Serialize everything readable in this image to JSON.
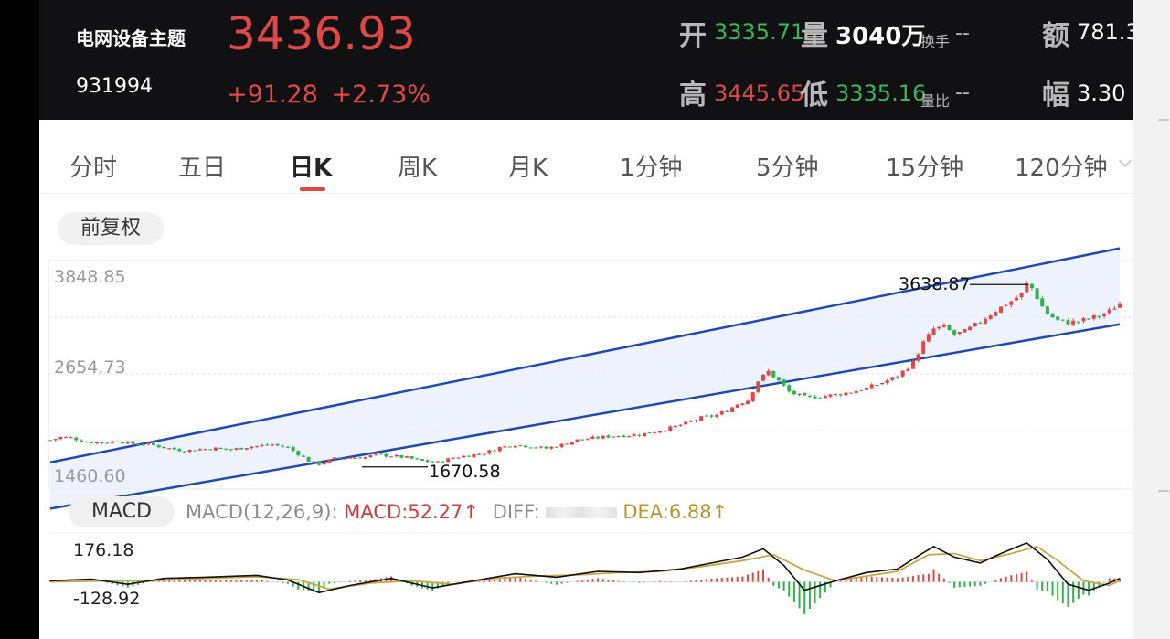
{
  "header": {
    "name": "电网设备主题",
    "code": "931994",
    "price": "3436.93",
    "change": "+91.28",
    "change_pct": "+2.73%",
    "open_label": "开",
    "open_value": "3335.71",
    "volume_label": "量",
    "volume_value": "3040万",
    "turnover_label": "换手",
    "turnover_value": "--",
    "amount_label": "额",
    "amount_value": "781.3",
    "high_label": "高",
    "high_value": "3445.65",
    "low_label": "低",
    "low_value": "3335.16",
    "volratio_label": "量比",
    "volratio_value": "--",
    "amp_label": "幅",
    "amp_value": "3.30"
  },
  "tabs": [
    {
      "label": "分时",
      "active": false
    },
    {
      "label": "五日",
      "active": false
    },
    {
      "label": "日K",
      "active": true
    },
    {
      "label": "周K",
      "active": false
    },
    {
      "label": "月K",
      "active": false
    },
    {
      "label": "1分钟",
      "active": false
    },
    {
      "label": "5分钟",
      "active": false
    },
    {
      "label": "15分钟",
      "active": false
    },
    {
      "label": "120分钟",
      "active": false
    }
  ],
  "adjust_label": "前复权",
  "colors": {
    "up": "#e04848",
    "down": "#2fb34a",
    "channel": "#1f4bb0",
    "channel_fill": "#eaf0fb",
    "diff_line": "#111111",
    "dea_line": "#c9a646"
  },
  "chart_data": {
    "type": "candlestick",
    "price_axis": {
      "ticks": [
        "3848.85",
        "2654.73",
        "1460.60"
      ],
      "range": [
        1460.6,
        3848.85
      ]
    },
    "annotations": [
      {
        "text": "3638.87",
        "kind": "max",
        "value": 3638.87
      },
      {
        "text": "1670.58",
        "kind": "min",
        "value": 1670.58
      }
    ],
    "close_path": [
      [
        0,
        1960
      ],
      [
        2,
        1990
      ],
      [
        4,
        1985
      ],
      [
        7,
        1940
      ],
      [
        10,
        1930
      ],
      [
        13,
        1950
      ],
      [
        16,
        1920
      ],
      [
        19,
        1915
      ],
      [
        23,
        1870
      ],
      [
        26,
        1845
      ],
      [
        29,
        1860
      ],
      [
        32,
        1870
      ],
      [
        35,
        1855
      ],
      [
        38,
        1885
      ],
      [
        41,
        1900
      ],
      [
        43,
        1910
      ],
      [
        46,
        1880
      ],
      [
        48,
        1810
      ],
      [
        50,
        1735
      ],
      [
        52,
        1700
      ],
      [
        55,
        1760
      ],
      [
        58,
        1770
      ],
      [
        61,
        1775
      ],
      [
        63,
        1800
      ],
      [
        66,
        1790
      ],
      [
        69,
        1770
      ],
      [
        72,
        1735
      ],
      [
        75,
        1720
      ],
      [
        78,
        1770
      ],
      [
        81,
        1795
      ],
      [
        84,
        1820
      ],
      [
        87,
        1880
      ],
      [
        90,
        1910
      ],
      [
        93,
        1890
      ],
      [
        96,
        1870
      ],
      [
        99,
        1910
      ],
      [
        102,
        1960
      ],
      [
        105,
        1980
      ],
      [
        108,
        2000
      ],
      [
        111,
        2010
      ],
      [
        114,
        2020
      ],
      [
        117,
        2050
      ],
      [
        120,
        2090
      ],
      [
        123,
        2140
      ],
      [
        126,
        2200
      ],
      [
        129,
        2230
      ],
      [
        131,
        2280
      ],
      [
        133,
        2350
      ],
      [
        135,
        2390
      ],
      [
        137,
        2600
      ],
      [
        139,
        2700
      ],
      [
        141,
        2600
      ],
      [
        143,
        2480
      ],
      [
        146,
        2420
      ],
      [
        149,
        2430
      ],
      [
        152,
        2450
      ],
      [
        155,
        2480
      ],
      [
        158,
        2520
      ],
      [
        161,
        2580
      ],
      [
        164,
        2650
      ],
      [
        167,
        2800
      ],
      [
        169,
        3010
      ],
      [
        171,
        3160
      ],
      [
        173,
        3180
      ],
      [
        175,
        3100
      ],
      [
        177,
        3130
      ],
      [
        179,
        3200
      ],
      [
        181,
        3280
      ],
      [
        183,
        3360
      ],
      [
        186,
        3460
      ],
      [
        188,
        3540
      ],
      [
        189,
        3640
      ],
      [
        190,
        3600
      ],
      [
        191,
        3500
      ],
      [
        192,
        3400
      ],
      [
        193,
        3320
      ],
      [
        195,
        3250
      ],
      [
        197,
        3230
      ],
      [
        199,
        3240
      ],
      [
        201,
        3270
      ],
      [
        203,
        3300
      ],
      [
        205,
        3350
      ],
      [
        207,
        3440
      ]
    ],
    "channel_upper": {
      "start": [
        0,
        1720
      ],
      "end": [
        207,
        4030
      ]
    },
    "channel_lower": {
      "start": [
        0,
        1220
      ],
      "end": [
        207,
        3210
      ]
    },
    "macd": {
      "label": "MACD",
      "params": "MACD(12,26,9):",
      "macd_text": "MACD:52.27↑",
      "diff_text": "DIFF:",
      "dea_text": "DEA:6.88↑",
      "axis_ticks": [
        "176.18",
        "-128.92"
      ],
      "range": [
        -128.92,
        176.18
      ],
      "diff_path": [
        [
          0,
          5
        ],
        [
          8,
          12
        ],
        [
          15,
          -10
        ],
        [
          22,
          15
        ],
        [
          30,
          20
        ],
        [
          40,
          28
        ],
        [
          46,
          8
        ],
        [
          52,
          -45
        ],
        [
          58,
          -15
        ],
        [
          66,
          15
        ],
        [
          74,
          -25
        ],
        [
          82,
          5
        ],
        [
          90,
          35
        ],
        [
          98,
          20
        ],
        [
          106,
          45
        ],
        [
          114,
          40
        ],
        [
          122,
          55
        ],
        [
          128,
          80
        ],
        [
          134,
          105
        ],
        [
          138,
          140
        ],
        [
          142,
          70
        ],
        [
          146,
          -35
        ],
        [
          152,
          5
        ],
        [
          158,
          40
        ],
        [
          164,
          55
        ],
        [
          168,
          110
        ],
        [
          171,
          150
        ],
        [
          175,
          105
        ],
        [
          180,
          80
        ],
        [
          184,
          120
        ],
        [
          189,
          165
        ],
        [
          193,
          95
        ],
        [
          197,
          -10
        ],
        [
          201,
          -35
        ],
        [
          205,
          -5
        ],
        [
          207,
          15
        ]
      ],
      "dea_path": [
        [
          0,
          0
        ],
        [
          10,
          5
        ],
        [
          20,
          5
        ],
        [
          30,
          15
        ],
        [
          40,
          22
        ],
        [
          48,
          10
        ],
        [
          54,
          -30
        ],
        [
          62,
          -5
        ],
        [
          70,
          5
        ],
        [
          78,
          -10
        ],
        [
          86,
          15
        ],
        [
          94,
          25
        ],
        [
          102,
          30
        ],
        [
          110,
          40
        ],
        [
          118,
          45
        ],
        [
          126,
          65
        ],
        [
          134,
          90
        ],
        [
          140,
          115
        ],
        [
          146,
          50
        ],
        [
          152,
          5
        ],
        [
          158,
          25
        ],
        [
          164,
          45
        ],
        [
          170,
          115
        ],
        [
          175,
          120
        ],
        [
          180,
          90
        ],
        [
          186,
          120
        ],
        [
          191,
          150
        ],
        [
          195,
          90
        ],
        [
          200,
          5
        ],
        [
          205,
          -15
        ],
        [
          207,
          5
        ]
      ]
    }
  }
}
